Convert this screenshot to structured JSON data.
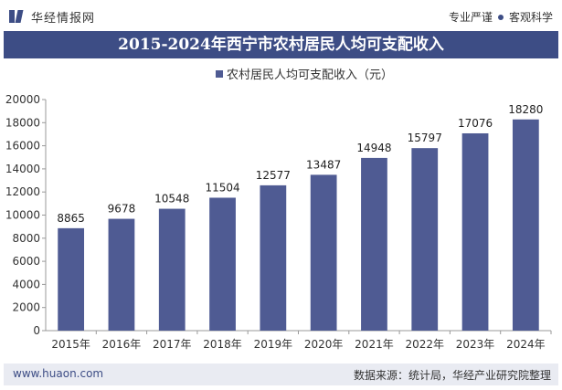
{
  "header": {
    "brand": "华经情报网",
    "tags": [
      "专业严谨",
      "客观科学"
    ]
  },
  "footer": {
    "website": "www.huaon.com",
    "source": "数据来源：统计局，华经产业研究院整理"
  },
  "colors": {
    "brand": "#3d4d85",
    "bar": "#4f5b93"
  },
  "chart_data": {
    "type": "bar",
    "title": "2015-2024年西宁市农村居民人均可支配收入",
    "categories": [
      "2015年",
      "2016年",
      "2017年",
      "2018年",
      "2019年",
      "2020年",
      "2021年",
      "2022年",
      "2023年",
      "2024年"
    ],
    "series": [
      {
        "name": "农村居民人均可支配收入（元）",
        "values": [
          8865,
          9678,
          10548,
          11504,
          12577,
          13487,
          14948,
          15797,
          17076,
          18280
        ]
      }
    ],
    "ylim": [
      0,
      20000
    ],
    "yticks": [
      0,
      2000,
      4000,
      6000,
      8000,
      10000,
      12000,
      14000,
      16000,
      18000,
      20000
    ],
    "grid": false,
    "legend": "top-center",
    "data_labels": true
  }
}
